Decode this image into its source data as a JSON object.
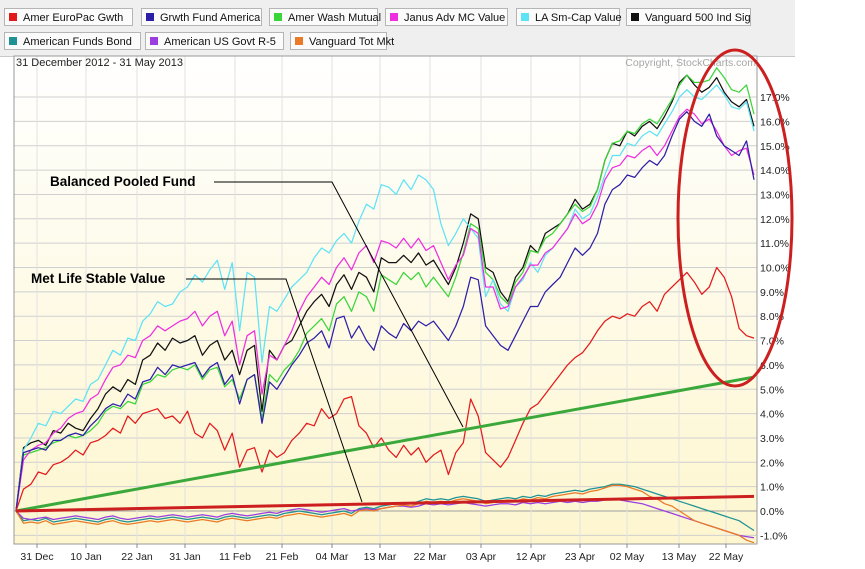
{
  "legend": [
    {
      "label": "Amer EuroPac Gwth",
      "color": "#e31a1c"
    },
    {
      "label": "Grwth Fund America",
      "color": "#2e1fa8"
    },
    {
      "label": "Amer Wash Mutual",
      "color": "#3ad53a"
    },
    {
      "label": "Janus Adv MC Value",
      "color": "#ee2fe0"
    },
    {
      "label": "LA Sm-Cap Value",
      "color": "#5ee3f5"
    },
    {
      "label": "Vanguard 500 Ind Sig",
      "color": "#111111"
    },
    {
      "label": "American Funds Bond",
      "color": "#1e9294"
    },
    {
      "label": "American US Govt R-5",
      "color": "#9a3ee0"
    },
    {
      "label": "Vanguard Tot Mkt",
      "color": "#ea7a25"
    }
  ],
  "header": {
    "date_range": "31 December 2012 - 31 May 2013",
    "copyright": "Copyright, StockCharts.com"
  },
  "annotations": {
    "balanced": "Balanced Pooled Fund",
    "metlife": "Met Life Stable Value"
  },
  "chart_data": {
    "type": "line",
    "ylim": [
      -1.5,
      18.4
    ],
    "y_ticks": [
      "-1.0%",
      "0.0%",
      "1.0%",
      "2.0%",
      "3.0%",
      "4.0%",
      "5.0%",
      "6.0%",
      "7.0%",
      "8.0%",
      "9.0%",
      "10.0%",
      "11.0%",
      "12.0%",
      "13.0%",
      "14.0%",
      "15.0%",
      "16.0%",
      "17.0%"
    ],
    "x_ticks": [
      "31 Dec",
      "10 Jan",
      "22 Jan",
      "31 Jan",
      "11 Feb",
      "21 Feb",
      "04 Mar",
      "13 Mar",
      "22 Mar",
      "03 Apr",
      "12 Apr",
      "23 Apr",
      "02 May",
      "13 May",
      "22 May"
    ],
    "grid": true,
    "series": [
      {
        "name": "Vanguard 500 Ind Sig",
        "color": "#111111",
        "values": [
          0,
          2.6,
          2.8,
          2.9,
          2.7,
          3.3,
          3.2,
          3.6,
          3.4,
          3.3,
          3.8,
          4.2,
          4.8,
          5.1,
          4.9,
          5.4,
          5.2,
          6.2,
          6.4,
          6.9,
          6.6,
          7.1,
          6.9,
          7.0,
          7.2,
          6.4,
          6.8,
          7.0,
          6.2,
          6.6,
          5.6,
          6.6,
          6.8,
          4.1,
          6.6,
          6.2,
          6.8,
          7.0,
          7.6,
          8.2,
          8.6,
          8.9,
          8.4,
          9.3,
          9.7,
          9.1,
          9.8,
          9.6,
          9.0,
          10.4,
          10.2,
          10.2,
          10.5,
          10.2,
          10.6,
          10.1,
          10.3,
          9.8,
          9.3,
          10.0,
          11.0,
          12.2,
          12.0,
          10.0,
          9.8,
          9.0,
          8.6,
          9.6,
          10.0,
          10.9,
          10.6,
          11.4,
          11.6,
          11.8,
          12.2,
          12.8,
          12.4,
          12.6,
          13.2,
          14.4,
          15.1,
          15.0,
          15.6,
          15.4,
          15.8,
          16.0,
          15.7,
          16.2,
          16.8,
          17.6,
          17.9,
          17.5,
          17.2,
          17.4,
          17.8,
          17.2,
          16.8,
          16.6,
          16.9,
          15.8
        ]
      },
      {
        "name": "Amer Wash Mutual",
        "color": "#3ad53a",
        "values": [
          0,
          2.3,
          2.4,
          2.5,
          2.6,
          2.8,
          2.9,
          3.1,
          3.0,
          3.1,
          3.3,
          3.6,
          4.1,
          4.3,
          4.2,
          4.5,
          4.4,
          5.2,
          5.3,
          5.6,
          5.5,
          5.8,
          5.9,
          5.8,
          6.0,
          5.4,
          5.8,
          5.9,
          5.1,
          5.4,
          4.6,
          5.4,
          5.6,
          3.8,
          5.6,
          5.3,
          5.8,
          6.1,
          6.6,
          7.3,
          7.6,
          7.9,
          7.4,
          8.5,
          8.8,
          8.2,
          9.0,
          8.8,
          8.2,
          9.7,
          9.5,
          9.3,
          9.8,
          9.5,
          9.8,
          9.2,
          9.6,
          9.2,
          8.8,
          9.6,
          10.6,
          11.8,
          11.6,
          9.8,
          9.5,
          8.8,
          8.5,
          9.4,
          9.8,
          10.7,
          10.6,
          11.2,
          11.4,
          11.8,
          12.2,
          12.6,
          12.3,
          12.5,
          13.2,
          14.4,
          15.1,
          15.2,
          15.6,
          15.5,
          15.9,
          16.1,
          15.9,
          16.4,
          16.9,
          17.5,
          17.9,
          17.6,
          17.6,
          17.7,
          18.2,
          17.8,
          17.3,
          17.2,
          17.5,
          16.3
        ]
      },
      {
        "name": "LA Sm-Cap Value",
        "color": "#5ee3f5",
        "values": [
          0,
          2.5,
          3.0,
          3.6,
          3.5,
          4.1,
          4.0,
          4.3,
          4.6,
          4.5,
          5.2,
          5.4,
          6.0,
          6.6,
          6.4,
          7.1,
          7.0,
          7.8,
          8.1,
          8.6,
          8.4,
          8.5,
          9.0,
          9.2,
          9.7,
          9.4,
          9.9,
          10.3,
          9.1,
          10.2,
          7.4,
          9.8,
          9.6,
          6.1,
          8.4,
          8.2,
          8.7,
          9.2,
          9.5,
          9.8,
          10.4,
          10.8,
          10.6,
          11.1,
          11.4,
          11.0,
          11.9,
          12.6,
          12.4,
          13.4,
          13.3,
          13.0,
          13.6,
          13.2,
          13.8,
          13.6,
          13.2,
          11.8,
          10.9,
          11.4,
          12.0,
          11.6,
          11.2,
          8.8,
          9.5,
          8.5,
          8.2,
          9.2,
          9.5,
          10.2,
          9.8,
          10.5,
          10.8,
          11.2,
          11.6,
          12.4,
          12.0,
          12.2,
          12.9,
          13.8,
          14.6,
          14.6,
          15.1,
          15.0,
          15.4,
          15.6,
          15.4,
          15.9,
          16.4,
          17.0,
          17.3,
          17.0,
          16.9,
          17.2,
          17.5,
          17.1,
          16.6,
          16.5,
          16.8,
          15.6
        ]
      },
      {
        "name": "Janus Adv MC Value",
        "color": "#ee2fe0",
        "values": [
          0,
          2.1,
          2.5,
          2.7,
          2.8,
          3.2,
          3.4,
          3.8,
          4.0,
          4.1,
          4.6,
          4.8,
          5.4,
          5.9,
          6.0,
          6.4,
          6.3,
          7.0,
          7.2,
          7.6,
          7.4,
          7.6,
          7.8,
          7.9,
          8.2,
          7.6,
          8.0,
          8.2,
          7.2,
          7.8,
          6.0,
          7.2,
          7.4,
          4.8,
          6.4,
          6.2,
          6.8,
          7.4,
          8.2,
          8.8,
          9.2,
          9.6,
          9.3,
          10.0,
          10.4,
          9.9,
          10.6,
          10.9,
          10.2,
          11.1,
          11.0,
          10.8,
          11.2,
          10.8,
          11.2,
          10.7,
          10.9,
          10.2,
          9.5,
          10.1,
          10.5,
          11.6,
          11.4,
          9.2,
          9.2,
          8.3,
          8.4,
          9.2,
          9.6,
          10.1,
          10.1,
          10.6,
          10.8,
          11.2,
          11.6,
          12.2,
          11.8,
          12.0,
          12.6,
          13.6,
          14.1,
          14.2,
          14.6,
          14.5,
          14.8,
          15.0,
          14.6,
          15.0,
          15.6,
          16.2,
          16.5,
          16.3,
          15.9,
          16.1,
          15.6,
          15.0,
          14.6,
          14.8,
          14.9,
          13.8
        ]
      },
      {
        "name": "Grwth Fund America",
        "color": "#2e1fa8",
        "values": [
          0,
          2.4,
          2.5,
          2.6,
          2.5,
          2.9,
          2.9,
          3.1,
          3.2,
          3.1,
          3.5,
          3.8,
          4.2,
          4.4,
          4.3,
          4.8,
          4.6,
          5.3,
          5.4,
          5.9,
          5.6,
          6.0,
          5.9,
          6.0,
          6.1,
          5.5,
          5.9,
          6.1,
          5.2,
          5.6,
          4.4,
          5.4,
          5.6,
          3.6,
          5.3,
          5.0,
          5.5,
          6.0,
          6.4,
          6.9,
          7.1,
          7.4,
          6.7,
          7.9,
          8.0,
          7.1,
          7.6,
          7.0,
          6.6,
          7.6,
          7.3,
          7.1,
          7.7,
          7.4,
          7.8,
          7.6,
          7.8,
          7.4,
          7.0,
          7.6,
          8.4,
          9.6,
          9.5,
          7.6,
          7.2,
          6.8,
          6.6,
          7.2,
          7.8,
          8.4,
          8.4,
          9.0,
          9.3,
          9.6,
          10.2,
          10.8,
          10.5,
          10.8,
          11.4,
          12.6,
          13.2,
          13.4,
          13.8,
          13.7,
          14.1,
          14.4,
          14.2,
          14.6,
          15.4,
          16.1,
          16.4,
          16.0,
          15.8,
          16.3,
          15.4,
          15.0,
          14.8,
          14.6,
          15.2,
          13.6
        ]
      },
      {
        "name": "Amer EuroPac Gwth",
        "color": "#e31a1c",
        "values": [
          0,
          0.9,
          1.1,
          1.6,
          1.5,
          1.9,
          2.0,
          2.2,
          2.5,
          2.3,
          2.8,
          2.9,
          3.1,
          3.4,
          3.2,
          3.9,
          3.6,
          4.0,
          4.1,
          4.2,
          3.8,
          3.9,
          3.6,
          4.1,
          3.2,
          3.0,
          3.6,
          3.3,
          2.5,
          3.2,
          1.8,
          2.5,
          2.6,
          1.6,
          2.5,
          2.2,
          2.4,
          2.9,
          3.2,
          3.6,
          3.5,
          4.2,
          3.8,
          4.0,
          4.6,
          4.7,
          3.5,
          3.2,
          2.6,
          3.0,
          2.5,
          2.2,
          2.7,
          2.3,
          2.6,
          2.0,
          2.3,
          2.5,
          1.5,
          2.4,
          2.8,
          4.6,
          3.9,
          2.4,
          2.1,
          1.8,
          2.2,
          2.9,
          3.6,
          4.2,
          4.4,
          4.8,
          5.2,
          5.6,
          6.0,
          6.3,
          6.5,
          6.9,
          7.4,
          7.8,
          8.0,
          7.9,
          8.1,
          8.0,
          8.4,
          8.6,
          8.2,
          8.9,
          9.2,
          9.5,
          9.8,
          9.4,
          8.9,
          9.2,
          10.0,
          9.6,
          8.8,
          7.5,
          7.2,
          7.1
        ]
      },
      {
        "name": "American Funds Bond",
        "color": "#1e9294",
        "values": [
          0,
          -0.4,
          -0.35,
          -0.4,
          -0.3,
          -0.45,
          -0.4,
          -0.35,
          -0.3,
          -0.35,
          -0.4,
          -0.45,
          -0.35,
          -0.3,
          -0.4,
          -0.45,
          -0.4,
          -0.35,
          -0.3,
          -0.35,
          -0.3,
          -0.25,
          -0.3,
          -0.35,
          -0.3,
          -0.25,
          -0.3,
          -0.35,
          -0.25,
          -0.2,
          -0.25,
          -0.3,
          -0.25,
          -0.2,
          -0.15,
          -0.2,
          -0.1,
          -0.05,
          0.0,
          -0.05,
          -0.1,
          -0.15,
          -0.1,
          -0.05,
          0.0,
          -0.1,
          0.1,
          0.15,
          0.1,
          0.2,
          0.25,
          0.3,
          0.35,
          0.3,
          0.4,
          0.5,
          0.45,
          0.5,
          0.45,
          0.55,
          0.6,
          0.55,
          0.5,
          0.4,
          0.45,
          0.5,
          0.55,
          0.5,
          0.6,
          0.55,
          0.65,
          0.6,
          0.7,
          0.75,
          0.8,
          0.85,
          0.8,
          0.9,
          0.95,
          1.0,
          1.1,
          1.1,
          1.05,
          1.0,
          0.9,
          0.8,
          0.7,
          0.6,
          0.5,
          0.4,
          0.3,
          0.2,
          0.1,
          0.0,
          -0.1,
          -0.2,
          -0.3,
          -0.4,
          -0.6,
          -0.8
        ]
      },
      {
        "name": "American US Govt R-5",
        "color": "#9a3ee0",
        "values": [
          0,
          -0.3,
          -0.35,
          -0.3,
          -0.25,
          -0.35,
          -0.3,
          -0.25,
          -0.2,
          -0.25,
          -0.3,
          -0.35,
          -0.25,
          -0.2,
          -0.3,
          -0.35,
          -0.3,
          -0.25,
          -0.2,
          -0.25,
          -0.2,
          -0.15,
          -0.2,
          -0.25,
          -0.2,
          -0.15,
          -0.2,
          -0.25,
          -0.15,
          -0.1,
          -0.15,
          -0.2,
          -0.15,
          -0.1,
          -0.05,
          -0.1,
          0.0,
          0.05,
          0.1,
          0.05,
          0.0,
          -0.05,
          0.0,
          0.05,
          0.1,
          0.0,
          0.05,
          0.1,
          0.05,
          0.1,
          0.15,
          0.2,
          0.2,
          0.15,
          0.2,
          0.3,
          0.25,
          0.3,
          0.25,
          0.3,
          0.35,
          0.3,
          0.25,
          0.2,
          0.25,
          0.3,
          0.3,
          0.25,
          0.35,
          0.3,
          0.35,
          0.3,
          0.35,
          0.4,
          0.35,
          0.4,
          0.35,
          0.4,
          0.4,
          0.45,
          0.5,
          0.45,
          0.4,
          0.35,
          0.3,
          0.2,
          0.1,
          0.0,
          -0.1,
          -0.2,
          -0.3,
          -0.4,
          -0.5,
          -0.6,
          -0.7,
          -0.8,
          -0.9,
          -1.0,
          -1.05,
          -1.1
        ]
      },
      {
        "name": "Vanguard Tot Mkt",
        "color": "#ea7a25",
        "values": [
          0,
          -0.5,
          -0.45,
          -0.5,
          -0.4,
          -0.55,
          -0.5,
          -0.45,
          -0.4,
          -0.45,
          -0.5,
          -0.55,
          -0.45,
          -0.4,
          -0.5,
          -0.55,
          -0.5,
          -0.45,
          -0.4,
          -0.45,
          -0.4,
          -0.35,
          -0.4,
          -0.45,
          -0.4,
          -0.35,
          -0.4,
          -0.45,
          -0.35,
          -0.3,
          -0.35,
          -0.4,
          -0.35,
          -0.3,
          -0.25,
          -0.3,
          -0.2,
          -0.15,
          -0.1,
          -0.15,
          -0.2,
          -0.25,
          -0.2,
          -0.15,
          -0.1,
          -0.2,
          0.0,
          0.05,
          0.0,
          0.1,
          0.15,
          0.2,
          0.25,
          0.2,
          0.3,
          0.4,
          0.35,
          0.4,
          0.35,
          0.45,
          0.5,
          0.45,
          0.4,
          0.3,
          0.35,
          0.4,
          0.45,
          0.4,
          0.5,
          0.45,
          0.55,
          0.5,
          0.6,
          0.65,
          0.7,
          0.75,
          0.7,
          0.8,
          0.85,
          0.95,
          1.05,
          1.05,
          1.0,
          0.9,
          0.8,
          0.6,
          0.5,
          0.3,
          0.2,
          0.0,
          -0.2,
          -0.4,
          -0.5,
          -0.6,
          -0.7,
          -0.8,
          -0.9,
          -1.0,
          -1.2,
          -1.3
        ]
      }
    ],
    "overlays": [
      {
        "label": "Balanced Pooled Fund",
        "color": "#3aa83a",
        "values": [
          0,
          5.5
        ]
      },
      {
        "label": "Met Life Stable Value",
        "color": "#cc1f1f",
        "values": [
          0,
          0.6
        ]
      }
    ]
  }
}
